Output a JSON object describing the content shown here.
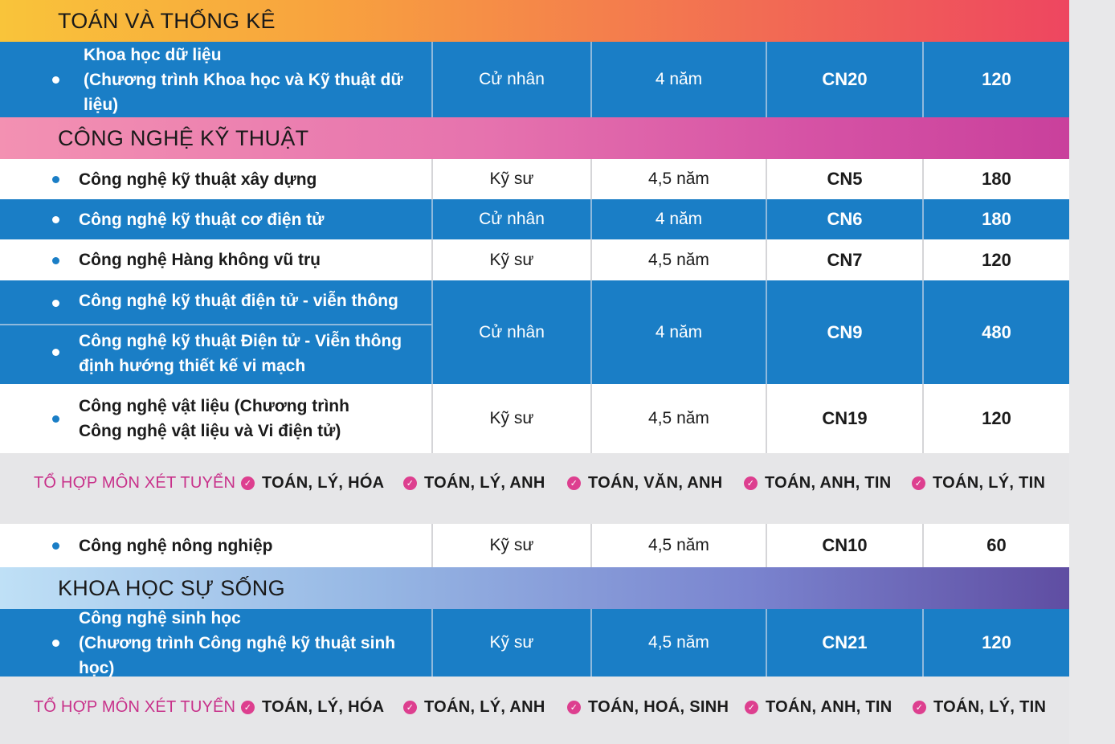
{
  "sections": {
    "toan": "TOÁN VÀ THỐNG KÊ",
    "cong_nghe": "CÔNG NGHỆ KỸ THUẬT",
    "khoa_hoc_su_song": "KHOA HỌC SỰ SỐNG"
  },
  "rows": {
    "khdl": {
      "name1": "Khoa học dữ liệu",
      "name2": "(Chương trình Khoa học và Kỹ thuật dữ liệu)",
      "degree": "Cử nhân",
      "duration": "4 năm",
      "code": "CN20",
      "quota": "120"
    },
    "xaydung": {
      "name1": "Công nghệ kỹ thuật xây dựng",
      "degree": "Kỹ sư",
      "duration": "4,5 năm",
      "code": "CN5",
      "quota": "180"
    },
    "codientu": {
      "name1": "Công nghệ kỹ thuật cơ điện tử",
      "degree": "Cử nhân",
      "duration": "4 năm",
      "code": "CN6",
      "quota": "180"
    },
    "hangkhong": {
      "name1": "Công nghệ Hàng không vũ trụ",
      "degree": "Kỹ sư",
      "duration": "4,5 năm",
      "code": "CN7",
      "quota": "120"
    },
    "dientu": {
      "name1": "Công nghệ kỹ thuật điện tử - viễn thông",
      "name_b1": "Công nghệ kỹ thuật Điện tử - Viễn thông",
      "name_b2": "định hướng thiết kế vi mạch",
      "degree": "Cử nhân",
      "duration": "4 năm",
      "code": "CN9",
      "quota": "480"
    },
    "vatlieu": {
      "name1": "Công nghệ vật liệu (Chương trình",
      "name2": "Công nghệ vật liệu và Vi điện tử)",
      "degree": "Kỹ sư",
      "duration": "4,5 năm",
      "code": "CN19",
      "quota": "120"
    },
    "nongnghiep": {
      "name1": "Công nghệ nông nghiệp",
      "degree": "Kỹ sư",
      "duration": "4,5 năm",
      "code": "CN10",
      "quota": "60"
    },
    "sinhhoc": {
      "name1": "Công nghệ sinh học",
      "name2": "(Chương trình Công nghệ kỹ thuật sinh học)",
      "degree": "Kỹ sư",
      "duration": "4,5 năm",
      "code": "CN21",
      "quota": "120"
    }
  },
  "combo1": {
    "label": "TỔ HỢP MÔN XÉT TUYỂN",
    "items": [
      "TOÁN, LÝ, HÓA",
      "TOÁN, LÝ, ANH",
      "TOÁN, VĂN, ANH",
      "TOÁN, ANH, TIN",
      "TOÁN, LÝ, TIN"
    ]
  },
  "combo2": {
    "label": "TỔ HỢP MÔN XÉT TUYỂN",
    "items": [
      "TOÁN, LÝ, HÓA",
      "TOÁN, LÝ, ANH",
      "TOÁN, HOÁ, SINH",
      "TOÁN, ANH, TIN",
      "TOÁN, LÝ, TIN"
    ]
  },
  "colors": {
    "blue_row": "#1a7ec6",
    "combo_label": "#c8318a",
    "check": "#dd3f8f"
  }
}
